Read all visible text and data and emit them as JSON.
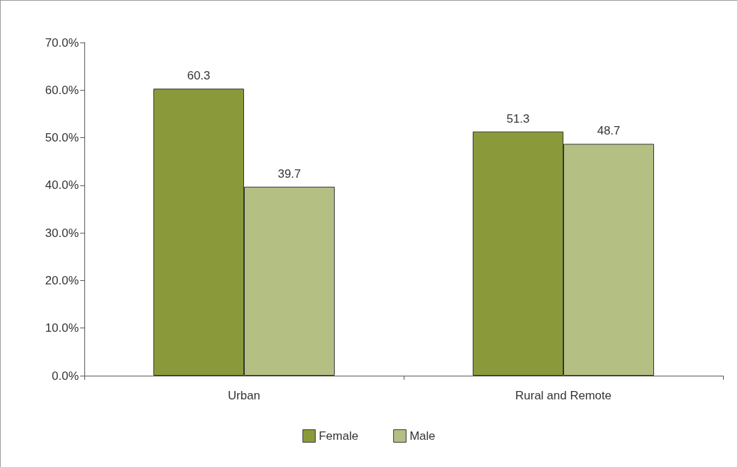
{
  "chart_data": {
    "type": "bar",
    "categories": [
      "Urban",
      "Rural and Remote"
    ],
    "series": [
      {
        "name": "Female",
        "color": "#8a9a3b",
        "values": [
          60.3,
          51.3
        ]
      },
      {
        "name": "Male",
        "color": "#b3bf83",
        "values": [
          39.7,
          48.7
        ]
      }
    ],
    "ylim": [
      0,
      70
    ],
    "yticks": [
      {
        "value": 0,
        "label": "0.0%"
      },
      {
        "value": 10,
        "label": "10.0%"
      },
      {
        "value": 20,
        "label": "20.0%"
      },
      {
        "value": 30,
        "label": "30.0%"
      },
      {
        "value": 40,
        "label": "40.0%"
      },
      {
        "value": 50,
        "label": "50.0%"
      },
      {
        "value": 60,
        "label": "60.0%"
      },
      {
        "value": 70,
        "label": "70.0%"
      }
    ],
    "data_labels": true,
    "grid": false,
    "legend": "bottom"
  }
}
